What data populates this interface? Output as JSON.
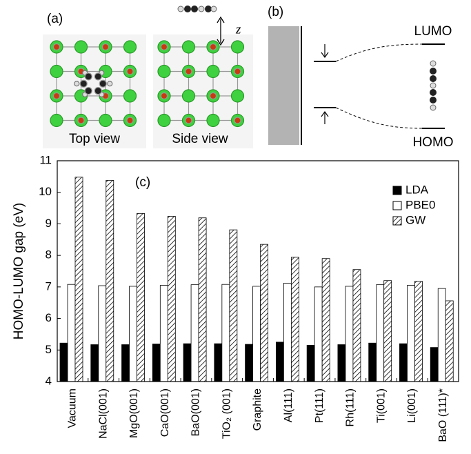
{
  "panel_a": {
    "label": "(a)",
    "top_view": "Top view",
    "side_view": "Side view",
    "z_label": "z"
  },
  "panel_b": {
    "label": "(b)",
    "lumo": "LUMO",
    "homo": "HOMO"
  },
  "chart_data": {
    "type": "bar",
    "title": "(c)",
    "y_label": "HOMO-LUMO gap (eV)",
    "categories": [
      "Vacuum",
      "NaCl(001)",
      "MgO(001)",
      "CaO(001)",
      "BaO(001)",
      "TiO₂ (001)",
      "Graphite",
      "Al(111)",
      "Pt(111)",
      "Rh(111)",
      "Ti(001)",
      "Li(001)",
      "BaO (111)*"
    ],
    "series": [
      {
        "name": "LDA",
        "color": "#000000",
        "values": [
          5.22,
          5.17,
          5.17,
          5.19,
          5.2,
          5.2,
          5.18,
          5.25,
          5.15,
          5.17,
          5.22,
          5.2,
          5.08
        ]
      },
      {
        "name": "PBE0",
        "color": "#ffffff",
        "values": [
          7.08,
          7.04,
          7.02,
          7.05,
          7.07,
          7.08,
          7.02,
          7.12,
          7.0,
          7.02,
          7.07,
          7.05,
          6.95
        ]
      },
      {
        "name": "GW",
        "color": "#ffffff",
        "pattern": "hatch",
        "values": [
          10.48,
          10.38,
          9.33,
          9.24,
          9.19,
          8.81,
          8.35,
          7.94,
          7.9,
          7.55,
          7.2,
          7.18,
          6.56
        ]
      }
    ],
    "ylim": [
      4,
      11
    ],
    "yticks": [
      4,
      5,
      6,
      7,
      8,
      9,
      10,
      11
    ],
    "legend": "upper-right"
  }
}
